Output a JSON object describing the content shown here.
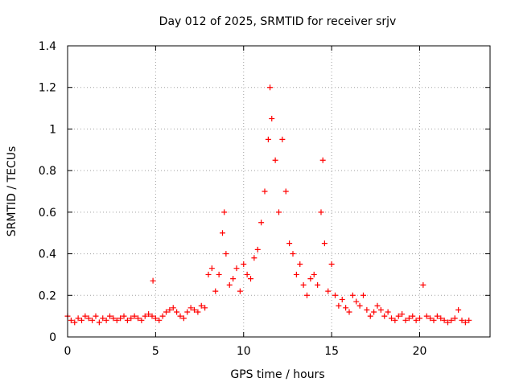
{
  "chart_data": {
    "type": "scatter",
    "title": "Day 012 of 2025, SRMTID for receiver srjv",
    "xlabel": "GPS time / hours",
    "ylabel": "SRMTID / TECUs",
    "xlim": [
      0,
      24
    ],
    "ylim": [
      0,
      1.4
    ],
    "xticks": [
      0,
      5,
      10,
      15,
      20
    ],
    "xtick_labels": [
      "0",
      "5",
      "10",
      "15",
      "20"
    ],
    "yticks": [
      0,
      0.2,
      0.4,
      0.6,
      0.8,
      1.0,
      1.2,
      1.4
    ],
    "ytick_labels": [
      "0",
      "0.2",
      "0.4",
      "0.6",
      "0.8",
      "1",
      "1.2",
      "1.4"
    ],
    "grid": true,
    "marker": "+",
    "series": [
      {
        "name": "srjv",
        "color": "#ff0000",
        "x": [
          0.0,
          0.2,
          0.4,
          0.6,
          0.8,
          1.0,
          1.2,
          1.4,
          1.6,
          1.8,
          2.0,
          2.2,
          2.4,
          2.6,
          2.8,
          3.0,
          3.2,
          3.4,
          3.6,
          3.8,
          4.0,
          4.2,
          4.4,
          4.6,
          4.8,
          4.85,
          5.0,
          5.2,
          5.4,
          5.6,
          5.8,
          6.0,
          6.2,
          6.4,
          6.6,
          6.8,
          7.0,
          7.2,
          7.4,
          7.6,
          7.8,
          8.0,
          8.2,
          8.4,
          8.6,
          8.8,
          8.9,
          9.0,
          9.2,
          9.4,
          9.6,
          9.8,
          10.0,
          10.2,
          10.4,
          10.6,
          10.8,
          11.0,
          11.2,
          11.4,
          11.5,
          11.6,
          11.8,
          12.0,
          12.2,
          12.4,
          12.6,
          12.8,
          13.0,
          13.2,
          13.4,
          13.6,
          13.8,
          14.0,
          14.2,
          14.4,
          14.5,
          14.6,
          14.8,
          15.0,
          15.2,
          15.4,
          15.6,
          15.8,
          16.0,
          16.2,
          16.4,
          16.6,
          16.8,
          17.0,
          17.2,
          17.4,
          17.6,
          17.8,
          18.0,
          18.2,
          18.4,
          18.6,
          18.8,
          19.0,
          19.2,
          19.4,
          19.6,
          19.8,
          20.0,
          20.2,
          20.4,
          20.6,
          20.8,
          21.0,
          21.2,
          21.4,
          21.6,
          21.8,
          22.0,
          22.2,
          22.4,
          22.6,
          22.8
        ],
        "y": [
          0.1,
          0.08,
          0.07,
          0.09,
          0.08,
          0.1,
          0.09,
          0.08,
          0.1,
          0.07,
          0.09,
          0.08,
          0.1,
          0.09,
          0.08,
          0.09,
          0.1,
          0.08,
          0.09,
          0.1,
          0.09,
          0.08,
          0.1,
          0.11,
          0.1,
          0.27,
          0.09,
          0.08,
          0.1,
          0.12,
          0.13,
          0.14,
          0.12,
          0.1,
          0.09,
          0.12,
          0.14,
          0.13,
          0.12,
          0.15,
          0.14,
          0.3,
          0.33,
          0.22,
          0.3,
          0.5,
          0.6,
          0.4,
          0.25,
          0.28,
          0.33,
          0.22,
          0.35,
          0.3,
          0.28,
          0.38,
          0.42,
          0.55,
          0.7,
          0.95,
          1.2,
          1.05,
          0.85,
          0.6,
          0.95,
          0.7,
          0.45,
          0.4,
          0.3,
          0.35,
          0.25,
          0.2,
          0.28,
          0.3,
          0.25,
          0.6,
          0.85,
          0.45,
          0.22,
          0.35,
          0.2,
          0.15,
          0.18,
          0.14,
          0.12,
          0.2,
          0.17,
          0.15,
          0.2,
          0.13,
          0.1,
          0.12,
          0.15,
          0.13,
          0.1,
          0.12,
          0.09,
          0.08,
          0.1,
          0.11,
          0.08,
          0.09,
          0.1,
          0.08,
          0.09,
          0.25,
          0.1,
          0.09,
          0.08,
          0.1,
          0.09,
          0.08,
          0.07,
          0.08,
          0.09,
          0.13,
          0.08,
          0.07,
          0.08
        ]
      }
    ]
  }
}
